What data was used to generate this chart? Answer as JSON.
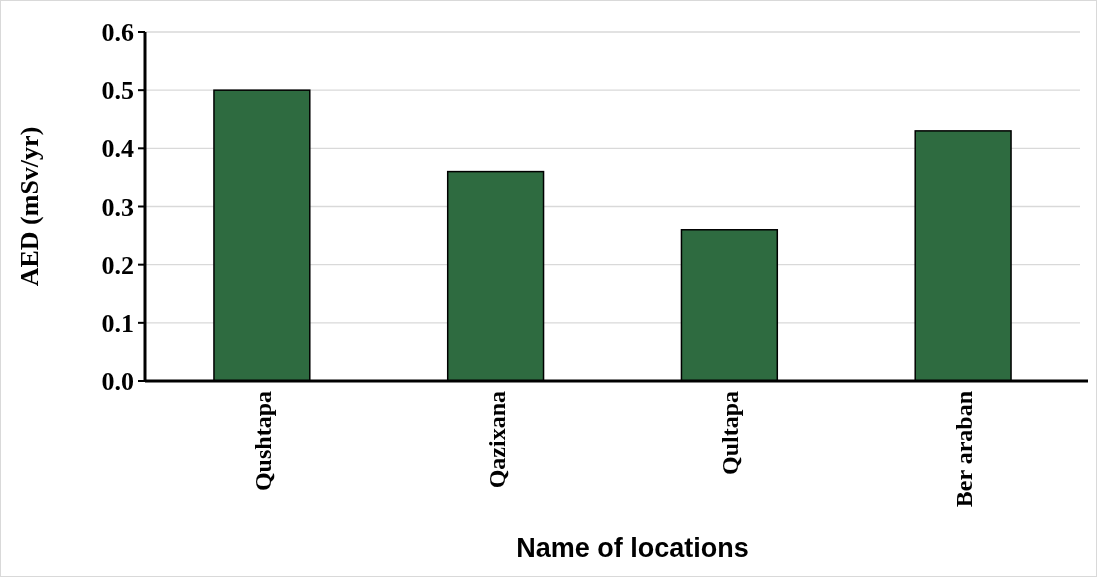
{
  "chart_data": {
    "type": "bar",
    "xlabel": "Name of locations",
    "ylabel": "AED (mSv/yr)",
    "categories": [
      "Qushtapa",
      "Qazixana",
      "Qultapa",
      "Ber araban"
    ],
    "values": [
      0.5,
      0.36,
      0.26,
      0.43
    ],
    "color": "#2e6b40",
    "ylim": [
      0,
      0.6
    ],
    "yticks": [
      {
        "value": 0,
        "label": "0.0"
      },
      {
        "value": 0.1,
        "label": "0.1"
      },
      {
        "value": 0.2,
        "label": "0.2"
      },
      {
        "value": 0.3,
        "label": "0.3"
      },
      {
        "value": 0.4,
        "label": "0.4"
      },
      {
        "value": 0.5,
        "label": "0.5"
      },
      {
        "value": 0.6,
        "label": "0.6"
      }
    ],
    "grid": "y"
  }
}
